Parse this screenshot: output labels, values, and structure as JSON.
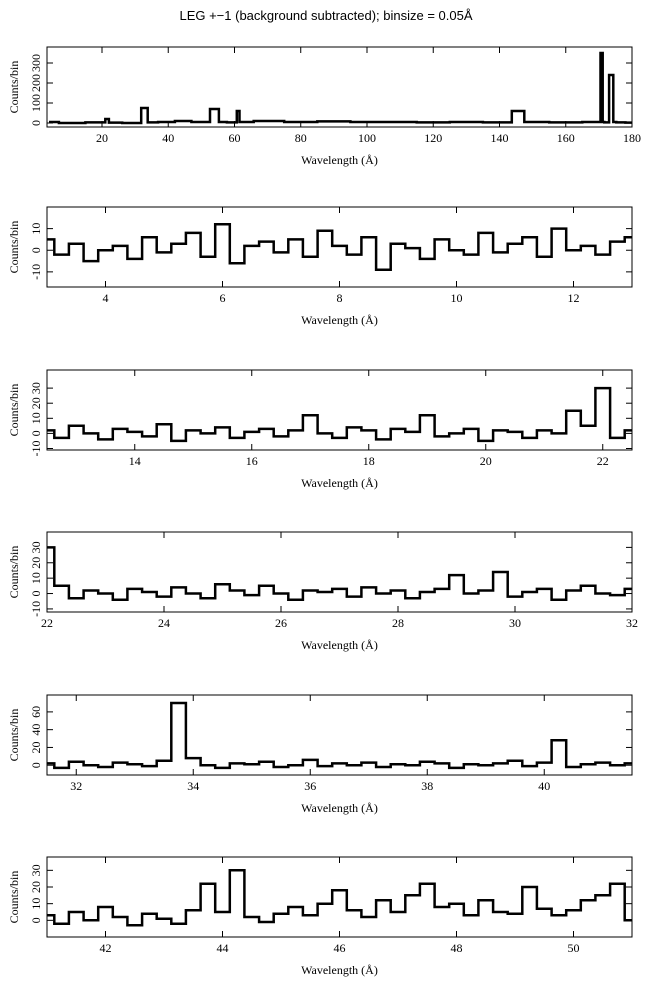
{
  "chart_data": [
    {
      "type": "line",
      "step": true,
      "title": "LEG +−1 (background subtracted); binsize = 0.05Å",
      "xlabel": "Wavelength (Å)",
      "ylabel": "Counts/bin",
      "color": "#000000",
      "x": [
        4,
        10,
        20,
        22,
        22.2,
        30,
        33.7,
        33.9,
        40,
        44,
        50,
        55.2,
        55.4,
        60,
        61.4,
        61.6,
        70,
        80,
        90,
        100,
        110,
        120,
        130,
        140,
        147.4,
        147.6,
        150,
        160,
        170,
        171,
        171.3,
        172,
        174.2,
        174.5,
        176,
        180
      ],
      "values": [
        5,
        0,
        3,
        20,
        2,
        0,
        75,
        3,
        5,
        10,
        5,
        70,
        5,
        3,
        60,
        5,
        10,
        5,
        8,
        5,
        5,
        3,
        5,
        3,
        60,
        5,
        5,
        3,
        5,
        350,
        5,
        3,
        240,
        5,
        3,
        2
      ],
      "xlim": [
        3.4,
        180
      ],
      "xticks": [
        20,
        40,
        60,
        80,
        100,
        120,
        140,
        160,
        180
      ],
      "ylim": [
        -20,
        380
      ],
      "yticks": [
        0,
        100,
        200,
        300
      ]
    },
    {
      "type": "line",
      "step": true,
      "xlabel": "Wavelength (Å)",
      "ylabel": "Counts/bin",
      "color": "#000000",
      "x": [
        3,
        3.25,
        3.5,
        3.75,
        4,
        4.25,
        4.5,
        4.75,
        5,
        5.25,
        5.5,
        5.75,
        6,
        6.25,
        6.5,
        6.75,
        7,
        7.25,
        7.5,
        7.75,
        8,
        8.25,
        8.5,
        8.75,
        9,
        9.25,
        9.5,
        9.75,
        10,
        10.25,
        10.5,
        10.75,
        11,
        11.25,
        11.5,
        11.75,
        12,
        12.25,
        12.5,
        12.75,
        13
      ],
      "values": [
        5,
        -2,
        3,
        -5,
        0,
        2,
        -4,
        6,
        -1,
        3,
        8,
        -3,
        12,
        -6,
        2,
        4,
        -1,
        5,
        -3,
        9,
        2,
        -2,
        6,
        -9,
        3,
        1,
        -4,
        5,
        0,
        -2,
        8,
        -1,
        3,
        6,
        -3,
        10,
        0,
        2,
        -2,
        4,
        6
      ],
      "xlim": [
        3,
        13
      ],
      "xticks": [
        4,
        6,
        8,
        10,
        12
      ],
      "ylim": [
        -17,
        20
      ],
      "yticks": [
        -10,
        0,
        10
      ]
    },
    {
      "type": "line",
      "step": true,
      "xlabel": "Wavelength (Å)",
      "ylabel": "Counts/bin",
      "color": "#000000",
      "x": [
        12.5,
        12.75,
        13,
        13.25,
        13.5,
        13.75,
        14,
        14.25,
        14.5,
        14.75,
        15,
        15.25,
        15.5,
        15.75,
        16,
        16.25,
        16.5,
        16.75,
        17,
        17.25,
        17.5,
        17.75,
        18,
        18.25,
        18.5,
        18.75,
        19,
        19.25,
        19.5,
        19.75,
        20,
        20.25,
        20.5,
        20.75,
        21,
        21.25,
        21.5,
        21.75,
        22,
        22.25,
        22.5
      ],
      "values": [
        2,
        -3,
        5,
        0,
        -4,
        3,
        1,
        -2,
        6,
        -5,
        2,
        0,
        4,
        -3,
        1,
        3,
        -2,
        2,
        12,
        0,
        -3,
        4,
        2,
        -4,
        3,
        1,
        12,
        -2,
        0,
        3,
        -5,
        2,
        1,
        -3,
        2,
        0,
        15,
        5,
        30,
        -3,
        2
      ],
      "xlim": [
        12.5,
        22.5
      ],
      "xticks": [
        14,
        16,
        18,
        20,
        22
      ],
      "ylim": [
        -11,
        42
      ],
      "yticks": [
        -10,
        0,
        10,
        20,
        30
      ]
    },
    {
      "type": "line",
      "step": true,
      "xlabel": "Wavelength (Å)",
      "ylabel": "Counts/bin",
      "color": "#000000",
      "x": [
        22,
        22.25,
        22.5,
        22.75,
        23,
        23.25,
        23.5,
        23.75,
        24,
        24.25,
        24.5,
        24.75,
        25,
        25.25,
        25.5,
        25.75,
        26,
        26.25,
        26.5,
        26.75,
        27,
        27.25,
        27.5,
        27.75,
        28,
        28.25,
        28.5,
        28.75,
        29,
        29.25,
        29.5,
        29.75,
        30,
        30.25,
        30.5,
        30.75,
        31,
        31.25,
        31.5,
        31.75,
        32
      ],
      "values": [
        30,
        5,
        -3,
        2,
        0,
        -4,
        3,
        1,
        -2,
        4,
        0,
        -3,
        6,
        2,
        -1,
        5,
        0,
        -4,
        2,
        1,
        3,
        -2,
        4,
        0,
        2,
        -3,
        1,
        3,
        12,
        0,
        2,
        14,
        -2,
        1,
        3,
        -4,
        2,
        5,
        0,
        -1,
        3
      ],
      "xlim": [
        22,
        32
      ],
      "xticks": [
        22,
        24,
        26,
        28,
        30,
        32
      ],
      "ylim": [
        -12,
        40
      ],
      "yticks": [
        -10,
        0,
        10,
        20,
        30
      ]
    },
    {
      "type": "line",
      "step": true,
      "xlabel": "Wavelength (Å)",
      "ylabel": "Counts/bin",
      "color": "#000000",
      "x": [
        31.5,
        31.75,
        32,
        32.25,
        32.5,
        32.75,
        33,
        33.25,
        33.5,
        33.75,
        34,
        34.25,
        34.5,
        34.75,
        35,
        35.25,
        35.5,
        35.75,
        36,
        36.25,
        36.5,
        36.75,
        37,
        37.25,
        37.5,
        37.75,
        38,
        38.25,
        38.5,
        38.75,
        39,
        39.25,
        39.5,
        39.75,
        40,
        40.25,
        40.5,
        40.75,
        41,
        41.25,
        41.5
      ],
      "values": [
        2,
        -3,
        4,
        0,
        -2,
        3,
        1,
        -1,
        5,
        70,
        8,
        0,
        -3,
        2,
        1,
        4,
        -2,
        0,
        6,
        -1,
        2,
        0,
        3,
        -2,
        1,
        0,
        4,
        2,
        -3,
        1,
        0,
        2,
        5,
        -1,
        3,
        28,
        -2,
        1,
        3,
        0,
        2
      ],
      "xlim": [
        31.5,
        41.5
      ],
      "xticks": [
        32,
        34,
        36,
        38,
        40
      ],
      "ylim": [
        -11,
        79
      ],
      "yticks": [
        0,
        20,
        40,
        60
      ]
    },
    {
      "type": "line",
      "step": true,
      "xlabel": "Wavelength (Å)",
      "ylabel": "Counts/bin",
      "color": "#000000",
      "x": [
        41,
        41.25,
        41.5,
        41.75,
        42,
        42.25,
        42.5,
        42.75,
        43,
        43.25,
        43.5,
        43.75,
        44,
        44.25,
        44.5,
        44.75,
        45,
        45.25,
        45.5,
        45.75,
        46,
        46.25,
        46.5,
        46.75,
        47,
        47.25,
        47.5,
        47.75,
        48,
        48.25,
        48.5,
        48.75,
        49,
        49.25,
        49.5,
        49.75,
        50,
        50.25,
        50.5,
        50.75,
        51
      ],
      "values": [
        3,
        -2,
        5,
        0,
        8,
        2,
        -3,
        4,
        1,
        -2,
        6,
        22,
        5,
        30,
        2,
        -1,
        4,
        8,
        3,
        10,
        18,
        6,
        2,
        12,
        5,
        15,
        22,
        8,
        10,
        3,
        12,
        5,
        4,
        20,
        7,
        3,
        6,
        12,
        15,
        22,
        0
      ],
      "xlim": [
        41,
        51
      ],
      "xticks": [
        42,
        44,
        46,
        48,
        50
      ],
      "ylim": [
        -10,
        38
      ],
      "yticks": [
        0,
        10,
        20,
        30
      ]
    }
  ]
}
